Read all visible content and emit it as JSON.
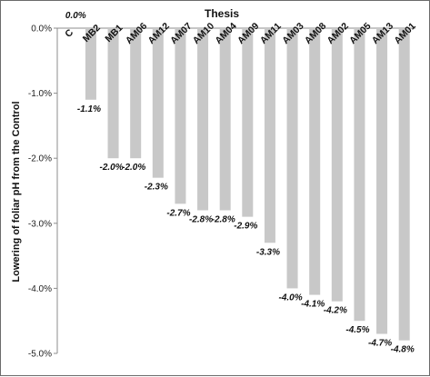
{
  "chart_data": {
    "type": "bar",
    "title": "Thesis",
    "xlabel": "",
    "ylabel": "Lowering  of foliar pH from the Control",
    "categories": [
      "C",
      "MB2",
      "MB1",
      "AM06",
      "AM12",
      "AM07",
      "AM10",
      "AM04",
      "AM09",
      "AM11",
      "AM03",
      "AM08",
      "AM02",
      "AM05",
      "AM13",
      "AM01"
    ],
    "values": [
      0.0,
      -1.1,
      -2.0,
      -2.0,
      -2.3,
      -2.7,
      -2.8,
      -2.8,
      -2.9,
      -3.3,
      -4.0,
      -4.1,
      -4.2,
      -4.5,
      -4.7,
      -4.8
    ],
    "data_labels": [
      "0.0%",
      "-1.1%",
      "-2.0%",
      "-2.0%",
      "-2.3%",
      "-2.7%",
      "-2.8%",
      "-2.8%",
      "-2.9%",
      "-3.3%",
      "-4.0%",
      "-4.1%",
      "-4.2%",
      "-4.5%",
      "-4.7%",
      "-4.8%"
    ],
    "yticks": [
      0.0,
      -1.0,
      -2.0,
      -3.0,
      -4.0,
      -5.0
    ],
    "ytick_labels": [
      "0.0%",
      "-1.0%",
      "-2.0%",
      "-3.0%",
      "-4.0%",
      "-5.0%"
    ],
    "ylim": [
      -5.0,
      0.0
    ],
    "grid": false,
    "legend": "none",
    "bar_color": "#c8c8c8",
    "axis_color": "#8c8c8c"
  }
}
